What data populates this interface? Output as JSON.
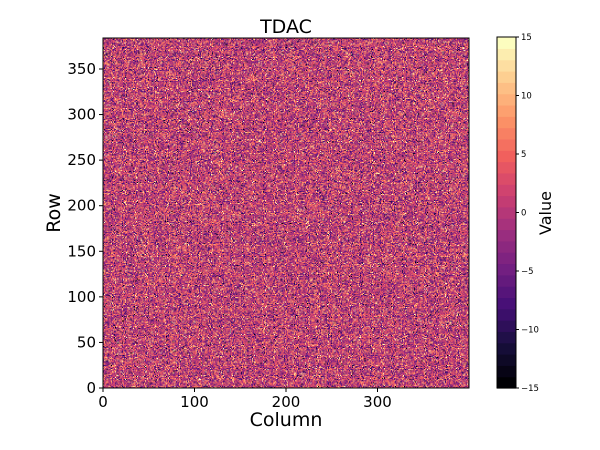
{
  "chart_data": {
    "type": "heatmap",
    "title": "TDAC",
    "xlabel": "Column",
    "ylabel": "Row",
    "xlim": [
      0,
      400
    ],
    "ylim": [
      0,
      384
    ],
    "x_ticks": [
      "0",
      "100",
      "200",
      "300"
    ],
    "y_ticks": [
      "0",
      "50",
      "100",
      "150",
      "200",
      "250",
      "300",
      "350"
    ],
    "colorbar": {
      "label": "Value",
      "range": [
        -15,
        15
      ],
      "levels": 31,
      "ticks": [
        "15",
        "10",
        "5",
        "0",
        "−5",
        "−10",
        "−15"
      ],
      "colormap": "magma",
      "colormap_stops": [
        "#000004",
        "#180f3d",
        "#440f76",
        "#721f81",
        "#9e2f7f",
        "#cd4071",
        "#f1605d",
        "#fd9668",
        "#feca8d",
        "#fcfdbf"
      ]
    },
    "values_description": "400 x 384 pixel matrix of pseudo-random integer TDAC values, roughly normally distributed around ~1 with spread ~5, clipped to [-15, 15]"
  }
}
